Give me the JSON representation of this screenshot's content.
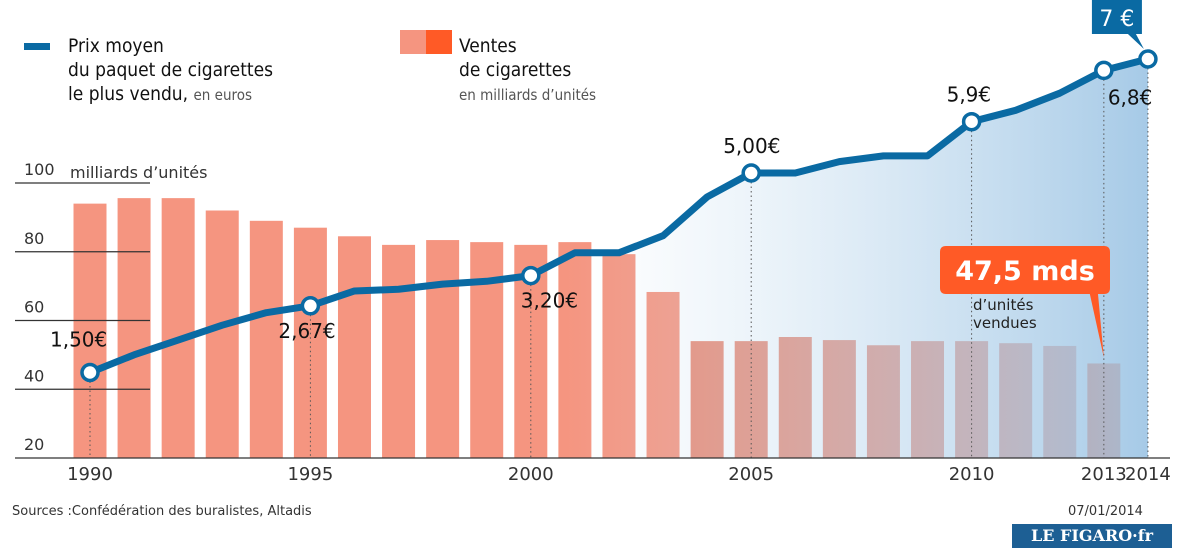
{
  "chart_data": {
    "type": "bar",
    "categories": [
      "1990",
      null,
      null,
      null,
      null,
      "1995",
      null,
      null,
      null,
      null,
      "2000",
      null,
      null,
      null,
      null,
      "2005",
      null,
      null,
      null,
      null,
      "2010",
      null,
      null,
      "2013",
      "2014"
    ],
    "series": [
      {
        "name": "Ventes\nde cigarettes",
        "unit": "en milliards d’unités",
        "type": "bar",
        "color": "#f59580",
        "color_late": "#ea8a74",
        "color_highlight": "#ff5a26",
        "values": [
          94,
          95.6,
          95.6,
          92,
          89,
          87,
          84.5,
          82,
          83.4,
          82.8,
          82,
          82.8,
          79.3,
          68.3,
          54,
          54,
          55.2,
          54.3,
          52.8,
          54,
          54,
          53.4,
          52.6,
          47.5,
          null
        ],
        "value_labels": [
          null,
          null,
          null,
          null,
          null,
          null,
          null,
          null,
          null,
          null,
          null,
          null,
          null,
          null,
          null,
          null,
          null,
          null,
          null,
          null,
          null,
          null,
          null,
          "47,5 mds",
          null
        ]
      },
      {
        "name": "Prix moyen\ndu paquet de cigarettes\nle plus vendu,",
        "unit": "en euros",
        "type": "line",
        "axis": "y2",
        "color": "#0a6aa3",
        "values": [
          1.5,
          1.81,
          2.07,
          2.33,
          2.55,
          2.67,
          2.93,
          2.96,
          3.05,
          3.1,
          3.2,
          3.6,
          3.6,
          3.9,
          4.58,
          5.0,
          5.0,
          5.2,
          5.3,
          5.3,
          5.9,
          6.1,
          6.4,
          6.8,
          7
        ],
        "value_labels": [
          "1,50€",
          null,
          null,
          null,
          null,
          "2,67€",
          null,
          null,
          null,
          null,
          "3,20€",
          null,
          null,
          null,
          null,
          "5,00€",
          null,
          null,
          null,
          null,
          "5,9€",
          null,
          null,
          "6,8€",
          "7 €"
        ]
      }
    ],
    "ylim": [
      20,
      100
    ],
    "yticks": [
      20,
      40,
      60,
      80,
      100
    ],
    "y2lim": [
      0,
      8
    ],
    "ylabel": "milliards d’unités",
    "annotation": "d’unités\nvendues",
    "source": "Sources :Confédération des buralistes, Altadis",
    "date": "07/01/2014",
    "logo": "LE FIGARO·fr"
  }
}
